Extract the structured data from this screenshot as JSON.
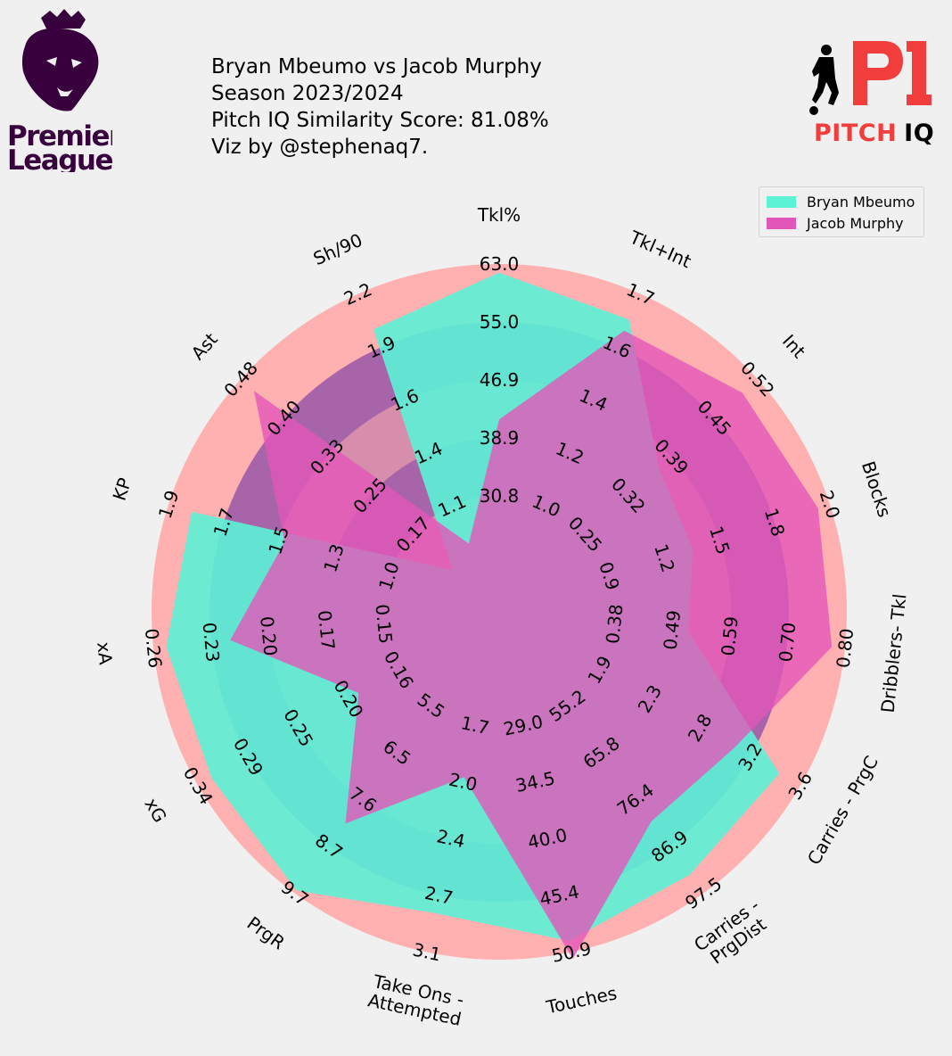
{
  "title": {
    "line1": "Bryan Mbeumo vs Jacob Murphy",
    "line2": "Season 2023/2024",
    "line3": "Pitch IQ Similarity Score: 81.08%",
    "line4": "Viz by @stephenaq7."
  },
  "logos": {
    "league": [
      "Premier",
      "League"
    ],
    "brand": "PITCH IQ",
    "brand_parts": [
      "PITCH",
      "IQ"
    ]
  },
  "colors": {
    "background": "#f0f0f0",
    "ring_outer": "#ffb0b0",
    "ring_fill": "#a764a8",
    "player1": "#5cf2d6",
    "player2": "#e356b9",
    "league_purple": "#38003c",
    "brand_red": "#f23d3d"
  },
  "chart_data": {
    "type": "radar",
    "ring_count": 5,
    "params": [
      {
        "name": "Tkl%",
        "ticks": [
          "30.8",
          "38.9",
          "46.9",
          "55.0",
          "63.0"
        ]
      },
      {
        "name": "Tkl+Int",
        "ticks": [
          "1.0",
          "1.2",
          "1.4",
          "1.6",
          "1.7"
        ]
      },
      {
        "name": "Int",
        "ticks": [
          "0.25",
          "0.32",
          "0.39",
          "0.45",
          "0.52"
        ]
      },
      {
        "name": "Blocks",
        "ticks": [
          "0.9",
          "1.2",
          "1.5",
          "1.8",
          "2.0"
        ]
      },
      {
        "name": "Dribblers- Tkl",
        "ticks": [
          "0.38",
          "0.49",
          "0.59",
          "0.70",
          "0.80"
        ]
      },
      {
        "name": "Carries - PrgC",
        "ticks": [
          "1.9",
          "2.3",
          "2.8",
          "3.2",
          "3.6"
        ]
      },
      {
        "name": "Carries -\nPrgDist",
        "ticks": [
          "55.2",
          "65.8",
          "76.4",
          "86.9",
          "97.5"
        ]
      },
      {
        "name": "Touches",
        "ticks": [
          "29.0",
          "34.5",
          "40.0",
          "45.4",
          "50.9"
        ]
      },
      {
        "name": "Take Ons -\nAttempted",
        "ticks": [
          "1.7",
          "2.0",
          "2.4",
          "2.7",
          "3.1"
        ]
      },
      {
        "name": "PrgR",
        "ticks": [
          "5.5",
          "6.5",
          "7.6",
          "8.7",
          "9.7"
        ]
      },
      {
        "name": "xG",
        "ticks": [
          "0.16",
          "0.20",
          "0.25",
          "0.29",
          "0.34"
        ]
      },
      {
        "name": "xA",
        "ticks": [
          "0.15",
          "0.17",
          "0.20",
          "0.23",
          "0.26"
        ]
      },
      {
        "name": "KP",
        "ticks": [
          "1.0",
          "1.3",
          "1.5",
          "1.7",
          "1.9"
        ]
      },
      {
        "name": "Ast",
        "ticks": [
          "0.17",
          "0.25",
          "0.33",
          "0.40",
          "0.48"
        ]
      },
      {
        "name": "Sh/90",
        "ticks": [
          "1.1",
          "1.4",
          "1.6",
          "1.9",
          "2.2"
        ]
      }
    ],
    "param_min": [
      22.7,
      0.83,
      0.18,
      0.6,
      0.27,
      1.45,
      44.6,
      23.5,
      1.35,
      4.45,
      0.115,
      0.125,
      0.76,
      0.09,
      0.85
    ],
    "param_max": [
      63.0,
      1.7,
      0.52,
      2.0,
      0.8,
      3.6,
      97.5,
      50.9,
      3.1,
      9.7,
      0.34,
      0.26,
      1.9,
      0.48,
      2.2
    ],
    "series": [
      {
        "name": "Bryan Mbeumo",
        "values": [
          62.0,
          1.63,
          0.39,
          1.42,
          0.56,
          3.45,
          94.0,
          50.0,
          2.9,
          9.65,
          0.33,
          0.255,
          1.82,
          0.16,
          2.05
        ]
      },
      {
        "name": "Jacob Murphy",
        "values": [
          45.0,
          1.6,
          0.5,
          1.95,
          0.78,
          3.13,
          84.0,
          51.5,
          2.2,
          8.4,
          0.22,
          0.23,
          1.5,
          0.46,
          1.14
        ]
      }
    ],
    "legend_position": "top-right"
  }
}
